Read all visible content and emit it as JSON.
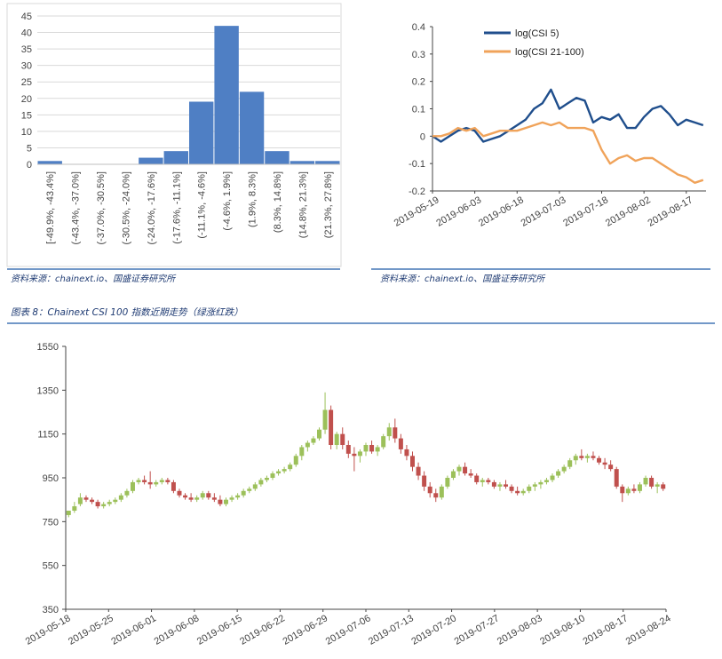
{
  "sources": {
    "left": "资料来源：chainext.io、国盛证券研究所",
    "right": "资料来源：chainext.io、国盛证券研究所"
  },
  "caption": "图表 8：Chainext CSI 100 指数近期走势（绿涨红跌）",
  "colors": {
    "hist_bar": "#4f7fc4",
    "csi5": "#1f4e8c",
    "csi21": "#f0a35a",
    "candle_up": "#9cc05a",
    "candle_down": "#c0504d",
    "rule": "#1f5aa6"
  },
  "chart_data": [
    {
      "type": "bar",
      "title": "",
      "categories": [
        "[-49.9%, -43.4%]",
        "(-43.4%, -37.0%]",
        "(-37.0%, -30.5%]",
        "(-30.5%, -24.0%]",
        "(-24.0%, -17.6%]",
        "(-17.6%, -11.1%]",
        "(-11.1%, -4.6%]",
        "(-4.6%, 1.9%]",
        "(1.9%, 8.3%]",
        "(8.3%, 14.8%]",
        "(14.8%, 21.3%]",
        "(21.3%, 27.8%]"
      ],
      "values": [
        1,
        0,
        0,
        0,
        2,
        4,
        19,
        42,
        22,
        4,
        1,
        1
      ],
      "ylim": [
        0,
        45
      ],
      "yticks": [
        0,
        5,
        10,
        15,
        20,
        25,
        30,
        35,
        40,
        45
      ],
      "grid": true
    },
    {
      "type": "line",
      "xlim": [
        "2019-05-19",
        "2019-08-24"
      ],
      "xticks": [
        "2019-05-19",
        "2019-06-03",
        "2019-06-18",
        "2019-07-03",
        "2019-07-18",
        "2019-08-02",
        "2019-08-17"
      ],
      "ylim": [
        -0.2,
        0.4
      ],
      "yticks": [
        "0.4",
        "0.3",
        "0.2",
        "0.1",
        "0",
        "-0.1",
        "-0.2"
      ],
      "legend": "top-left",
      "series": [
        {
          "name": "log(CSI 5)",
          "x": [
            "2019-05-19",
            "2019-05-22",
            "2019-05-25",
            "2019-05-28",
            "2019-05-31",
            "2019-06-03",
            "2019-06-06",
            "2019-06-09",
            "2019-06-12",
            "2019-06-15",
            "2019-06-18",
            "2019-06-21",
            "2019-06-24",
            "2019-06-27",
            "2019-06-30",
            "2019-07-03",
            "2019-07-06",
            "2019-07-09",
            "2019-07-12",
            "2019-07-15",
            "2019-07-18",
            "2019-07-21",
            "2019-07-24",
            "2019-07-27",
            "2019-07-30",
            "2019-08-02",
            "2019-08-05",
            "2019-08-08",
            "2019-08-11",
            "2019-08-14",
            "2019-08-17",
            "2019-08-20",
            "2019-08-23"
          ],
          "y": [
            0.0,
            -0.02,
            0.0,
            0.02,
            0.03,
            0.02,
            -0.02,
            -0.01,
            0.0,
            0.02,
            0.04,
            0.06,
            0.1,
            0.12,
            0.17,
            0.1,
            0.12,
            0.14,
            0.13,
            0.05,
            0.07,
            0.06,
            0.08,
            0.03,
            0.03,
            0.07,
            0.1,
            0.11,
            0.08,
            0.04,
            0.06,
            0.05,
            0.04
          ]
        },
        {
          "name": "log(CSI 21-100)",
          "x": [
            "2019-05-19",
            "2019-05-22",
            "2019-05-25",
            "2019-05-28",
            "2019-05-31",
            "2019-06-03",
            "2019-06-06",
            "2019-06-09",
            "2019-06-12",
            "2019-06-15",
            "2019-06-18",
            "2019-06-21",
            "2019-06-24",
            "2019-06-27",
            "2019-06-30",
            "2019-07-03",
            "2019-07-06",
            "2019-07-09",
            "2019-07-12",
            "2019-07-15",
            "2019-07-18",
            "2019-07-21",
            "2019-07-24",
            "2019-07-27",
            "2019-07-30",
            "2019-08-02",
            "2019-08-05",
            "2019-08-08",
            "2019-08-11",
            "2019-08-14",
            "2019-08-17",
            "2019-08-20",
            "2019-08-23"
          ],
          "y": [
            0.0,
            0.0,
            0.01,
            0.03,
            0.02,
            0.03,
            0.0,
            0.01,
            0.02,
            0.02,
            0.02,
            0.03,
            0.04,
            0.05,
            0.04,
            0.05,
            0.03,
            0.03,
            0.03,
            0.02,
            -0.05,
            -0.1,
            -0.08,
            -0.07,
            -0.09,
            -0.08,
            -0.08,
            -0.1,
            -0.12,
            -0.14,
            -0.15,
            -0.17,
            -0.16
          ]
        }
      ]
    },
    {
      "type": "candlestick",
      "ylim": [
        350,
        1550
      ],
      "yticks": [
        350,
        550,
        750,
        950,
        1150,
        1350,
        1550
      ],
      "x_start": "2019-05-18",
      "x_end": "2019-08-24",
      "xticks": [
        "2019-05-18",
        "2019-05-25",
        "2019-06-01",
        "2019-06-08",
        "2019-06-15",
        "2019-06-22",
        "2019-06-29",
        "2019-07-06",
        "2019-07-13",
        "2019-07-20",
        "2019-07-27",
        "2019-08-03",
        "2019-08-10",
        "2019-08-17",
        "2019-08-24"
      ],
      "ohlc": [
        [
          780,
          800,
          770,
          800
        ],
        [
          800,
          840,
          790,
          820
        ],
        [
          830,
          880,
          820,
          860
        ],
        [
          860,
          870,
          840,
          850
        ],
        [
          850,
          860,
          830,
          840
        ],
        [
          840,
          850,
          810,
          820
        ],
        [
          820,
          840,
          810,
          830
        ],
        [
          830,
          850,
          820,
          840
        ],
        [
          840,
          860,
          830,
          850
        ],
        [
          850,
          880,
          840,
          870
        ],
        [
          870,
          900,
          860,
          890
        ],
        [
          890,
          940,
          880,
          930
        ],
        [
          930,
          950,
          920,
          940
        ],
        [
          940,
          960,
          920,
          930
        ],
        [
          930,
          980,
          900,
          920
        ],
        [
          920,
          940,
          910,
          930
        ],
        [
          930,
          950,
          920,
          940
        ],
        [
          940,
          950,
          920,
          930
        ],
        [
          930,
          940,
          880,
          890
        ],
        [
          890,
          900,
          860,
          870
        ],
        [
          870,
          880,
          850,
          860
        ],
        [
          860,
          880,
          840,
          850
        ],
        [
          850,
          870,
          840,
          860
        ],
        [
          860,
          890,
          850,
          880
        ],
        [
          880,
          890,
          850,
          860
        ],
        [
          860,
          880,
          840,
          850
        ],
        [
          850,
          870,
          820,
          830
        ],
        [
          830,
          860,
          820,
          850
        ],
        [
          850,
          870,
          840,
          860
        ],
        [
          860,
          880,
          850,
          870
        ],
        [
          870,
          900,
          860,
          890
        ],
        [
          890,
          910,
          880,
          900
        ],
        [
          900,
          930,
          890,
          920
        ],
        [
          920,
          950,
          910,
          940
        ],
        [
          940,
          960,
          930,
          950
        ],
        [
          950,
          980,
          940,
          970
        ],
        [
          970,
          990,
          960,
          980
        ],
        [
          980,
          1000,
          970,
          990
        ],
        [
          990,
          1020,
          980,
          1010
        ],
        [
          1010,
          1060,
          1000,
          1050
        ],
        [
          1050,
          1100,
          1030,
          1090
        ],
        [
          1090,
          1120,
          1070,
          1110
        ],
        [
          1110,
          1140,
          1100,
          1130
        ],
        [
          1130,
          1180,
          1120,
          1170
        ],
        [
          1170,
          1340,
          1150,
          1260
        ],
        [
          1260,
          1280,
          1080,
          1100
        ],
        [
          1100,
          1160,
          1080,
          1150
        ],
        [
          1150,
          1180,
          1080,
          1100
        ],
        [
          1100,
          1120,
          1040,
          1060
        ],
        [
          1060,
          1090,
          980,
          1050
        ],
        [
          1050,
          1080,
          1020,
          1070
        ],
        [
          1070,
          1110,
          1050,
          1100
        ],
        [
          1100,
          1120,
          1060,
          1070
        ],
        [
          1070,
          1100,
          1050,
          1090
        ],
        [
          1090,
          1150,
          1080,
          1140
        ],
        [
          1140,
          1200,
          1120,
          1180
        ],
        [
          1180,
          1220,
          1110,
          1130
        ],
        [
          1130,
          1150,
          1060,
          1080
        ],
        [
          1080,
          1100,
          1030,
          1050
        ],
        [
          1050,
          1070,
          980,
          1000
        ],
        [
          1000,
          1020,
          940,
          960
        ],
        [
          960,
          980,
          890,
          910
        ],
        [
          910,
          930,
          860,
          880
        ],
        [
          880,
          900,
          840,
          860
        ],
        [
          860,
          920,
          850,
          910
        ],
        [
          910,
          960,
          900,
          950
        ],
        [
          950,
          990,
          940,
          980
        ],
        [
          980,
          1010,
          960,
          1000
        ],
        [
          1000,
          1020,
          960,
          970
        ],
        [
          970,
          990,
          950,
          960
        ],
        [
          960,
          970,
          920,
          930
        ],
        [
          930,
          950,
          910,
          940
        ],
        [
          940,
          950,
          920,
          930
        ],
        [
          930,
          940,
          900,
          910
        ],
        [
          910,
          930,
          890,
          920
        ],
        [
          920,
          940,
          900,
          910
        ],
        [
          910,
          920,
          880,
          890
        ],
        [
          890,
          910,
          870,
          880
        ],
        [
          880,
          900,
          870,
          890
        ],
        [
          890,
          920,
          880,
          910
        ],
        [
          910,
          930,
          890,
          920
        ],
        [
          920,
          940,
          900,
          930
        ],
        [
          930,
          950,
          920,
          940
        ],
        [
          940,
          970,
          930,
          960
        ],
        [
          960,
          990,
          950,
          980
        ],
        [
          980,
          1010,
          970,
          1000
        ],
        [
          1000,
          1040,
          990,
          1030
        ],
        [
          1030,
          1060,
          1010,
          1050
        ],
        [
          1050,
          1080,
          1030,
          1040
        ],
        [
          1040,
          1060,
          1020,
          1050
        ],
        [
          1050,
          1070,
          1030,
          1040
        ],
        [
          1040,
          1050,
          1010,
          1020
        ],
        [
          1020,
          1040,
          990,
          1010
        ],
        [
          1010,
          1030,
          980,
          990
        ],
        [
          990,
          1000,
          900,
          910
        ],
        [
          910,
          920,
          840,
          880
        ],
        [
          880,
          910,
          870,
          900
        ],
        [
          900,
          920,
          880,
          890
        ],
        [
          890,
          930,
          880,
          920
        ],
        [
          920,
          960,
          910,
          950
        ],
        [
          950,
          960,
          900,
          910
        ],
        [
          910,
          930,
          880,
          920
        ],
        [
          920,
          930,
          890,
          900
        ]
      ]
    }
  ]
}
